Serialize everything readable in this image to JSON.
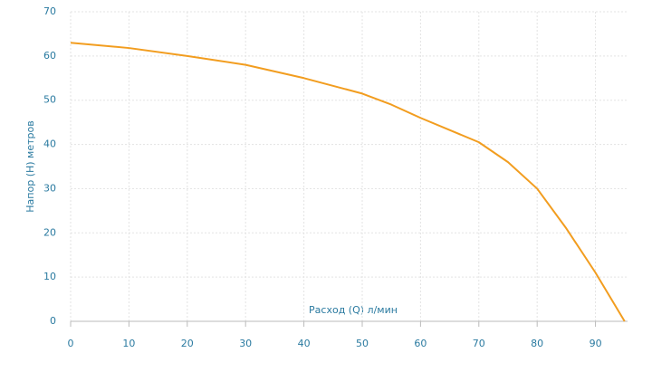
{
  "chart_data": {
    "type": "line",
    "xlabel": "Расход (Q) л/мин",
    "ylabel": "Напор (Н) метров",
    "x": [
      0,
      10,
      20,
      30,
      40,
      50,
      55,
      60,
      70,
      75,
      80,
      85,
      90,
      95
    ],
    "series": [
      {
        "name": "Напор",
        "color": "#f29d1f",
        "values": [
          63,
          61.8,
          60,
          58,
          55,
          51.5,
          49,
          46,
          40.5,
          36,
          30,
          21,
          11,
          0
        ]
      }
    ],
    "xlim": [
      0,
      95.5
    ],
    "xticks": [
      0,
      10,
      20,
      30,
      40,
      50,
      60,
      70,
      80,
      90
    ],
    "ylim": [
      0,
      70
    ],
    "yticks": [
      0,
      10,
      20,
      30,
      40,
      50,
      60,
      70
    ],
    "grid": true
  }
}
